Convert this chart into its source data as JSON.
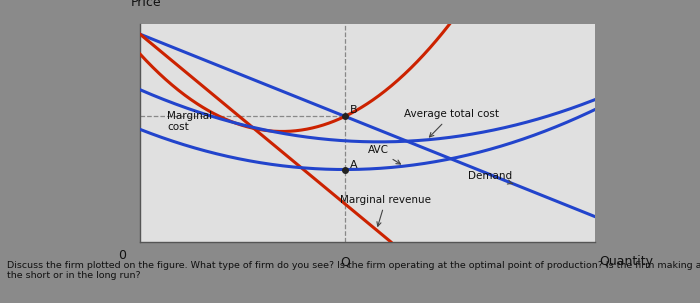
{
  "ylabel": "Price",
  "xlabel": "Quantity",
  "origin_label": "0",
  "q_label": "Q",
  "outer_bg": "#8a8a8a",
  "chart_bg": "#e0e0e0",
  "label_avg_total_cost": "Average total cost",
  "label_avc": "AVC",
  "label_demand": "Demand",
  "label_mc": "Marginal\ncost",
  "label_mr": "Marginal revenue",
  "line_blue": "#2244cc",
  "line_red": "#cc2200",
  "point_color": "#222222",
  "dashed_color": "#888888",
  "text_color": "#111111",
  "footnote": "Discuss the firm plotted on the figure. What type of firm do you see? Is the firm operating at the optimal point of production? Is the firm making a profit? Is the firm operating in\nthe short or in the long run?",
  "footnote_fontsize": 6.8,
  "axis_label_fontsize": 9,
  "curve_label_fontsize": 7.5
}
